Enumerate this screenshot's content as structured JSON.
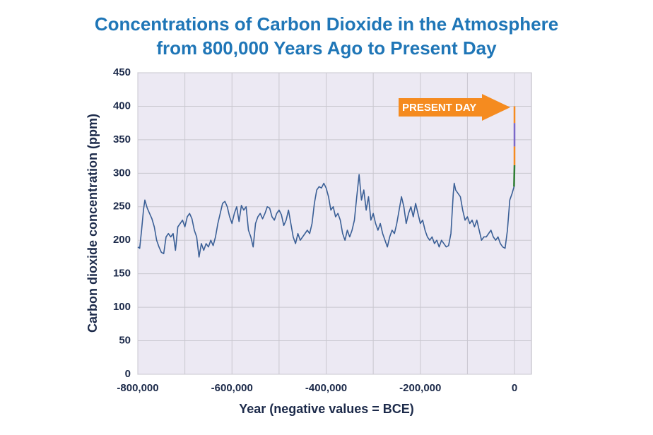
{
  "chart_data": {
    "type": "line",
    "title": [
      "Concentrations of Carbon Dioxide in the Atmosphere",
      "from 800,000 Years Ago to Present Day"
    ],
    "xlabel": "Year (negative values = BCE)",
    "ylabel": "Carbon dioxide concentration (ppm)",
    "annotation": "PRESENT DAY",
    "annotation_color": "#f58b1f",
    "xlim": [
      -800000,
      36000
    ],
    "xticks": [
      {
        "value": -800000,
        "label": "-800,000"
      },
      {
        "value": -600000,
        "label": "-600,000"
      },
      {
        "value": -400000,
        "label": "-400,000"
      },
      {
        "value": -200000,
        "label": "-200,000"
      },
      0
    ],
    "xminor_ticks": [
      -700000,
      -500000,
      -300000,
      -100000
    ],
    "ylim": [
      0,
      450
    ],
    "yticks": [
      0,
      50,
      100,
      150,
      200,
      250,
      300,
      350,
      400,
      450
    ],
    "grid": true,
    "background": "#ece9f3",
    "series": [
      {
        "color": "#3a5f96",
        "x": [
          -800000,
          -796000,
          -792000,
          -788000,
          -785000,
          -780000,
          -775000,
          -770000,
          -765000,
          -760000,
          -755000,
          -750000,
          -745000,
          -740000,
          -735000,
          -730000,
          -725000,
          -720000,
          -715000,
          -710000,
          -705000,
          -700000,
          -695000,
          -690000,
          -685000,
          -680000,
          -675000,
          -670000,
          -665000,
          -660000,
          -655000,
          -650000,
          -645000,
          -640000,
          -635000,
          -630000,
          -625000,
          -620000,
          -615000,
          -610000,
          -605000,
          -600000,
          -595000,
          -590000,
          -585000,
          -580000,
          -575000,
          -570000,
          -565000,
          -560000,
          -555000,
          -550000,
          -545000,
          -540000,
          -535000,
          -530000,
          -525000,
          -520000,
          -515000,
          -510000,
          -505000,
          -500000,
          -495000,
          -490000,
          -485000,
          -480000,
          -475000,
          -470000,
          -465000,
          -460000,
          -455000,
          -450000,
          -445000,
          -440000,
          -435000,
          -430000,
          -425000,
          -420000,
          -415000,
          -410000,
          -405000,
          -400000,
          -395000,
          -390000,
          -385000,
          -380000,
          -375000,
          -370000,
          -365000,
          -360000,
          -355000,
          -350000,
          -345000,
          -340000,
          -335000,
          -330000,
          -325000,
          -320000,
          -315000,
          -310000,
          -305000,
          -300000,
          -295000,
          -290000,
          -285000,
          -280000,
          -275000,
          -270000,
          -265000,
          -260000,
          -255000,
          -250000,
          -245000,
          -240000,
          -235000,
          -230000,
          -225000,
          -220000,
          -215000,
          -210000,
          -205000,
          -200000,
          -195000,
          -190000,
          -185000,
          -180000,
          -175000,
          -170000,
          -165000,
          -160000,
          -155000,
          -150000,
          -145000,
          -140000,
          -135000,
          -130000,
          -128000,
          -125000,
          -120000,
          -115000,
          -110000,
          -105000,
          -100000,
          -95000,
          -90000,
          -85000,
          -80000,
          -75000,
          -70000,
          -65000,
          -60000,
          -55000,
          -50000,
          -45000,
          -40000,
          -35000,
          -30000,
          -25000,
          -20000,
          -15000,
          -10000,
          -5000,
          -1000
        ],
        "values": [
          190,
          188,
          215,
          245,
          260,
          248,
          240,
          232,
          220,
          200,
          190,
          182,
          180,
          205,
          210,
          205,
          210,
          185,
          220,
          225,
          230,
          220,
          235,
          240,
          232,
          215,
          205,
          175,
          195,
          185,
          195,
          190,
          200,
          192,
          205,
          225,
          240,
          255,
          258,
          250,
          235,
          225,
          240,
          250,
          228,
          252,
          245,
          250,
          215,
          205,
          190,
          225,
          235,
          240,
          232,
          240,
          250,
          248,
          235,
          230,
          240,
          245,
          238,
          222,
          230,
          245,
          225,
          205,
          195,
          210,
          200,
          205,
          210,
          215,
          210,
          225,
          255,
          275,
          280,
          278,
          285,
          278,
          265,
          245,
          250,
          235,
          240,
          230,
          210,
          200,
          215,
          205,
          215,
          230,
          265,
          298,
          260,
          275,
          245,
          265,
          230,
          240,
          225,
          215,
          225,
          210,
          200,
          190,
          205,
          215,
          210,
          225,
          245,
          265,
          250,
          225,
          240,
          250,
          235,
          255,
          240,
          225,
          230,
          215,
          205,
          200,
          205,
          195,
          200,
          190,
          200,
          195,
          190,
          192,
          210,
          270,
          285,
          275,
          270,
          265,
          245,
          230,
          235,
          225,
          230,
          220,
          230,
          215,
          200,
          205,
          205,
          210,
          215,
          205,
          200,
          205,
          195,
          190,
          188,
          215,
          260,
          270,
          280
        ]
      },
      {
        "color": "#2e7d32",
        "x": [
          -1000,
          0
        ],
        "values": [
          280,
          312
        ]
      },
      {
        "color": "#f58b1f",
        "x": [
          0,
          0
        ],
        "values": [
          312,
          340
        ]
      },
      {
        "color": "#7b68c8",
        "x": [
          0,
          0
        ],
        "values": [
          340,
          375
        ]
      },
      {
        "color": "#f58b1f",
        "x": [
          0,
          0
        ],
        "values": [
          375,
          400
        ]
      }
    ]
  }
}
